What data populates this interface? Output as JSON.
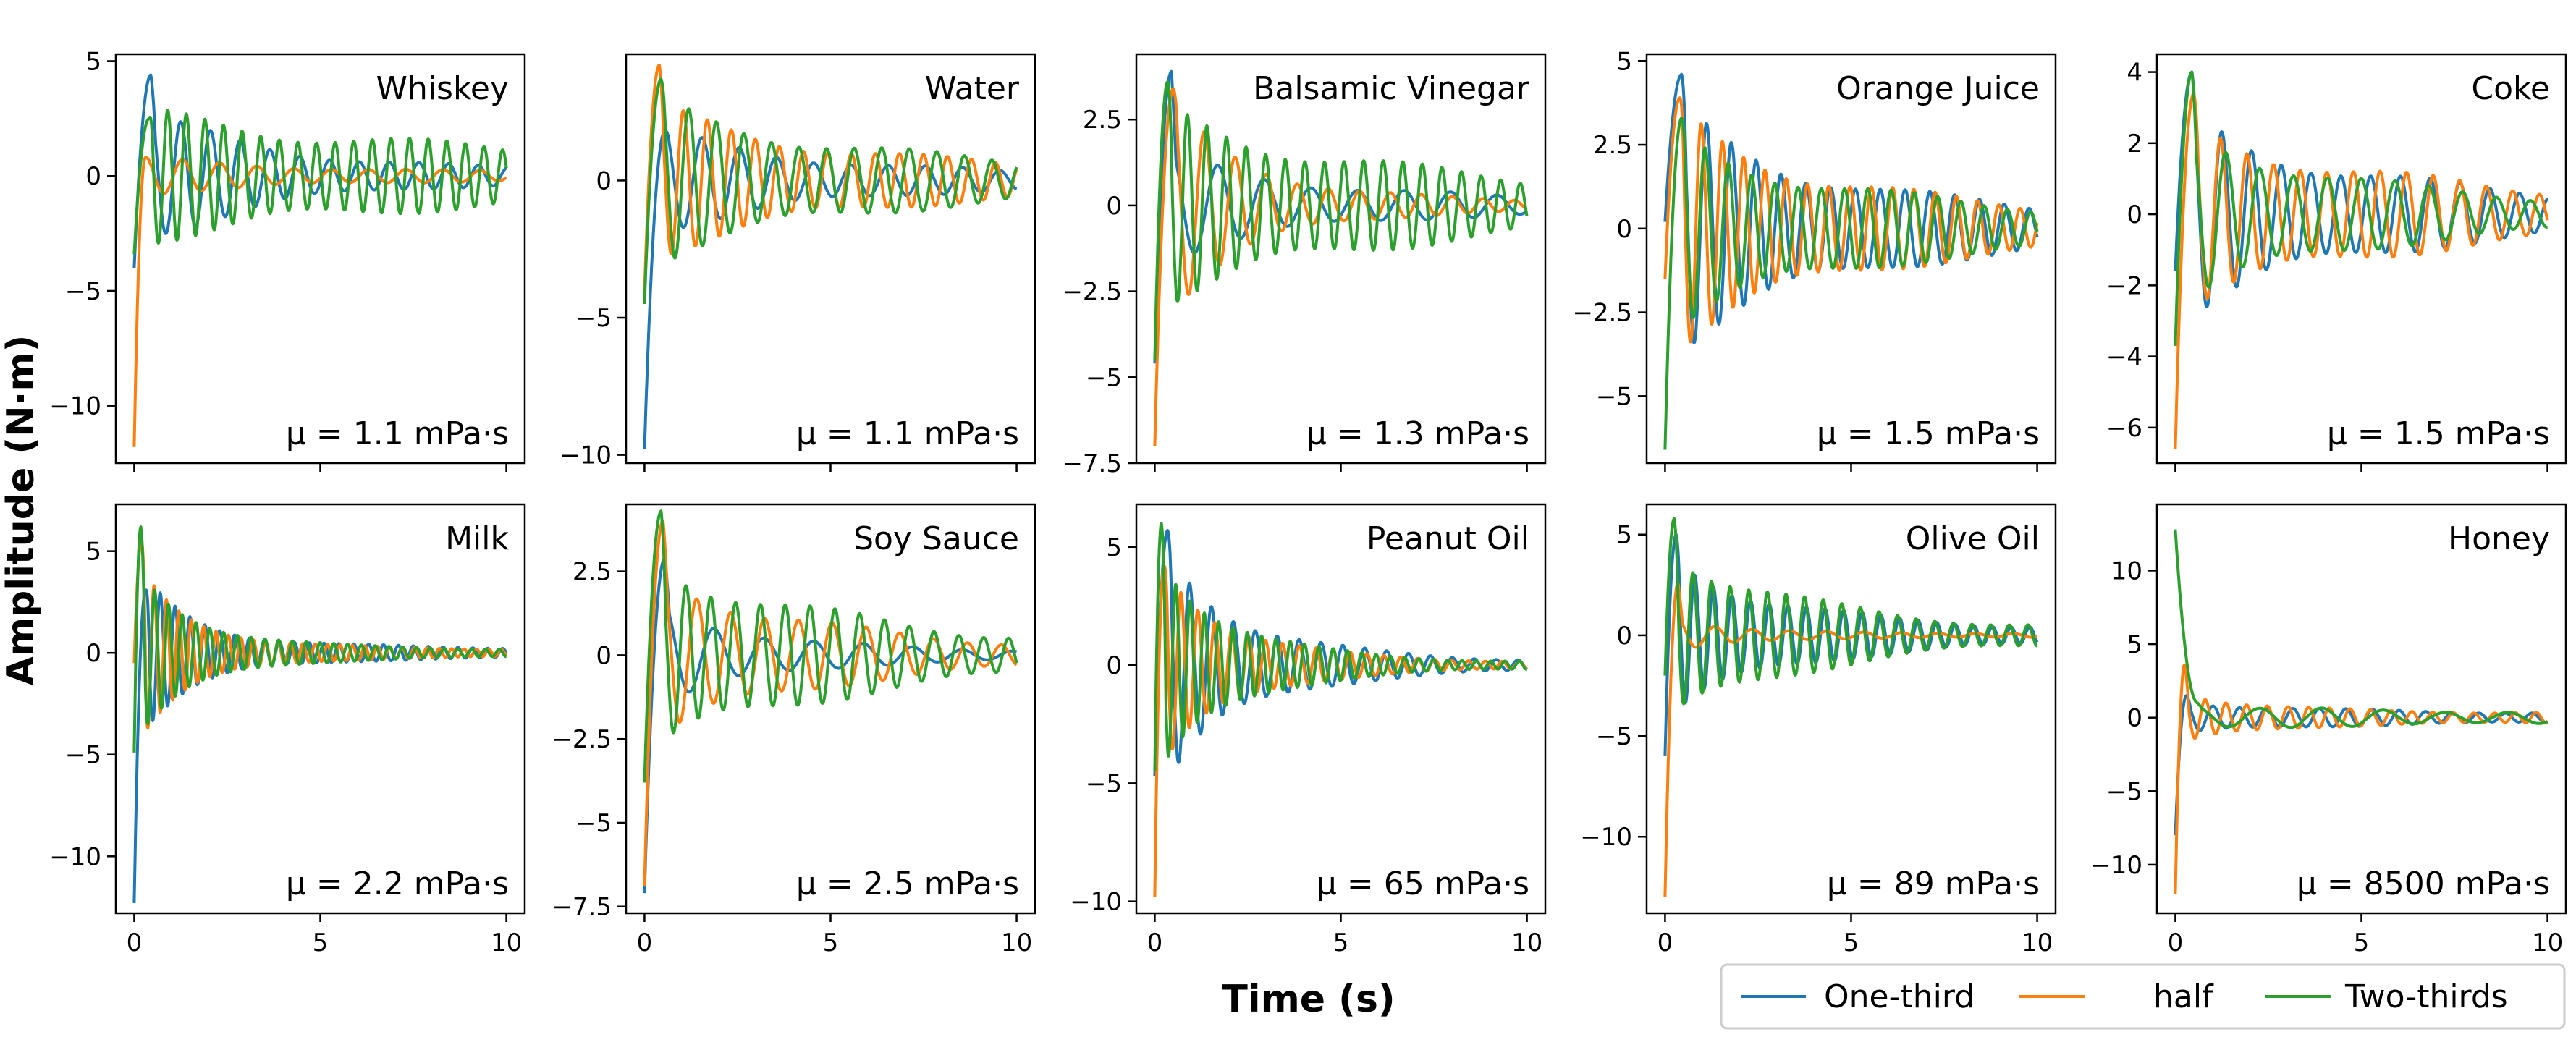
{
  "figure": {
    "ylabel": "Amplitude (N·m)",
    "xlabel": "Time (s)"
  },
  "legend": {
    "placement": "bottom-right",
    "entries": [
      {
        "label": "One-third",
        "color": "#1f77b4"
      },
      {
        "label": "half",
        "color": "#ff7f0e"
      },
      {
        "label": "Two-thirds",
        "color": "#2ca02c"
      }
    ]
  },
  "chart_data": [
    {
      "type": "line",
      "title": "Whiskey",
      "viscosity": "μ = 1.1 mPa·s",
      "xlim": [
        0,
        10
      ],
      "ylim": [
        -12.5,
        5.3
      ],
      "xticks": [
        0,
        5,
        10
      ],
      "yticks": [
        5,
        0,
        -5,
        -10
      ],
      "series": [
        {
          "name": "One-third",
          "start": -4,
          "peak": 4.4,
          "peak_t": 0.45,
          "amp": 2.3,
          "freq": 1.25,
          "decay": 0.25,
          "floor": 0.15
        },
        {
          "name": "half",
          "start": -11.8,
          "peak": 0.8,
          "peak_t": 0.3,
          "amp": 0.6,
          "freq": 1.0,
          "decay": 0.2,
          "floor": 0.12
        },
        {
          "name": "Two-thirds",
          "start": -3.4,
          "peak": 2.5,
          "peak_t": 0.4,
          "amp": 2.0,
          "freq": 2.0,
          "decay": 0.12,
          "floor": 0.55
        }
      ]
    },
    {
      "type": "line",
      "title": "Water",
      "viscosity": "μ = 1.1 mPa·s",
      "xlim": [
        0,
        10
      ],
      "ylim": [
        -10.3,
        4.6
      ],
      "xticks": [
        0,
        5,
        10
      ],
      "yticks": [
        0,
        -5,
        -10
      ],
      "series": [
        {
          "name": "One-third",
          "start": -9.8,
          "peak": 1.8,
          "peak_t": 0.55,
          "amp": 1.5,
          "freq": 1.0,
          "decay": 0.2,
          "floor": 0.1
        },
        {
          "name": "half",
          "start": -4.1,
          "peak": 4.2,
          "peak_t": 0.4,
          "amp": 2.2,
          "freq": 1.55,
          "decay": 0.18,
          "floor": 0.2
        },
        {
          "name": "Two-thirds",
          "start": -4.5,
          "peak": 3.7,
          "peak_t": 0.45,
          "amp": 2.3,
          "freq": 1.35,
          "decay": 0.17,
          "floor": 0.25
        }
      ]
    },
    {
      "type": "line",
      "title": "Balsamic Vinegar",
      "viscosity": "μ = 1.3 mPa·s",
      "xlim": [
        0,
        10
      ],
      "ylim": [
        -7.5,
        4.4
      ],
      "xticks": [
        0,
        5,
        10
      ],
      "yticks": [
        2.5,
        0.0,
        -2.5,
        -5.0,
        -7.5
      ],
      "series": [
        {
          "name": "One-third",
          "start": -4.6,
          "peak": 3.9,
          "peak_t": 0.45,
          "amp": 1.2,
          "freq": 0.8,
          "decay": 0.25,
          "floor": 0.15
        },
        {
          "name": "half",
          "start": -7.0,
          "peak": 3.4,
          "peak_t": 0.5,
          "amp": 2.5,
          "freq": 1.2,
          "decay": 0.4,
          "floor": 0.1
        },
        {
          "name": "Two-thirds",
          "start": -4.5,
          "peak": 3.6,
          "peak_t": 0.35,
          "amp": 2.3,
          "freq": 1.9,
          "decay": 0.15,
          "floor": 0.2
        }
      ]
    },
    {
      "type": "line",
      "title": "Orange Juice",
      "viscosity": "μ = 1.5 mPa·s",
      "xlim": [
        0,
        10
      ],
      "ylim": [
        -7.0,
        5.2
      ],
      "xticks": [
        0,
        5,
        10
      ],
      "yticks": [
        5.0,
        2.5,
        0.0,
        -2.5,
        -5.0
      ],
      "series": [
        {
          "name": "One-third",
          "start": 0.2,
          "peak": 4.6,
          "peak_t": 0.45,
          "amp": 2.8,
          "freq": 1.5,
          "decay": 0.22,
          "floor": 0.3
        },
        {
          "name": "half",
          "start": -1.5,
          "peak": 3.9,
          "peak_t": 0.4,
          "amp": 2.8,
          "freq": 1.75,
          "decay": 0.22,
          "floor": 0.3
        },
        {
          "name": "Two-thirds",
          "start": -6.6,
          "peak": 3.3,
          "peak_t": 0.45,
          "amp": 2.3,
          "freq": 1.6,
          "decay": 0.2,
          "floor": 0.25
        }
      ]
    },
    {
      "type": "line",
      "title": "Coke",
      "viscosity": "μ = 1.5 mPa·s",
      "xlim": [
        0,
        10
      ],
      "ylim": [
        -7.0,
        4.5
      ],
      "xticks": [
        0,
        5,
        10
      ],
      "yticks": [
        4,
        2,
        0,
        -2,
        -4,
        -6
      ],
      "series": [
        {
          "name": "One-third",
          "start": -1.6,
          "peak": 4.0,
          "peak_t": 0.45,
          "amp": 2.2,
          "freq": 1.25,
          "decay": 0.2,
          "floor": 0.25
        },
        {
          "name": "half",
          "start": -6.6,
          "peak": 3.4,
          "peak_t": 0.5,
          "amp": 2.0,
          "freq": 1.4,
          "decay": 0.18,
          "floor": 0.3
        },
        {
          "name": "Two-thirds",
          "start": -3.7,
          "peak": 4.0,
          "peak_t": 0.45,
          "amp": 2.0,
          "freq": 1.1,
          "decay": 0.22,
          "floor": 0.2
        }
      ]
    },
    {
      "type": "line",
      "title": "Milk",
      "viscosity": "μ = 2.2 mPa·s",
      "xlim": [
        0,
        10
      ],
      "ylim": [
        -12.8,
        7.3
      ],
      "xticks": [
        0,
        5,
        10
      ],
      "yticks": [
        5,
        0,
        -5,
        -10
      ],
      "series": [
        {
          "name": "One-third",
          "start": -12.3,
          "peak": 3.0,
          "peak_t": 0.3,
          "amp": 3.0,
          "freq": 2.5,
          "decay": 0.55,
          "floor": 0.25
        },
        {
          "name": "half",
          "start": -0.5,
          "peak": 5.5,
          "peak_t": 0.2,
          "amp": 3.5,
          "freq": 3.0,
          "decay": 0.6,
          "floor": 0.2
        },
        {
          "name": "Two-thirds",
          "start": -4.9,
          "peak": 6.2,
          "peak_t": 0.18,
          "amp": 3.5,
          "freq": 2.7,
          "decay": 0.55,
          "floor": 0.2
        }
      ]
    },
    {
      "type": "line",
      "title": "Soy Sauce",
      "viscosity": "μ = 2.5 mPa·s",
      "xlim": [
        0,
        10
      ],
      "ylim": [
        -7.7,
        4.5
      ],
      "xticks": [
        0,
        5,
        10
      ],
      "yticks": [
        2.5,
        0.0,
        -2.5,
        -5.0,
        -7.5
      ],
      "series": [
        {
          "name": "One-third",
          "start": -7.1,
          "peak": 2.9,
          "peak_t": 0.55,
          "amp": 1.3,
          "freq": 0.75,
          "decay": 0.35,
          "floor": 0.1
        },
        {
          "name": "half",
          "start": -6.9,
          "peak": 4.0,
          "peak_t": 0.5,
          "amp": 2.2,
          "freq": 1.1,
          "decay": 0.25,
          "floor": 0.15
        },
        {
          "name": "Two-thirds",
          "start": -3.8,
          "peak": 4.3,
          "peak_t": 0.45,
          "amp": 2.5,
          "freq": 1.5,
          "decay": 0.2,
          "floor": 0.2
        }
      ]
    },
    {
      "type": "line",
      "title": "Peanut Oil",
      "viscosity": "μ = 65 mPa·s",
      "xlim": [
        0,
        10
      ],
      "ylim": [
        -10.5,
        6.8
      ],
      "xticks": [
        0,
        5,
        10
      ],
      "yticks": [
        5,
        0,
        -5,
        -10
      ],
      "series": [
        {
          "name": "One-third",
          "start": -4.7,
          "peak": 5.7,
          "peak_t": 0.35,
          "amp": 4.5,
          "freq": 1.7,
          "decay": 0.45,
          "floor": 0.2
        },
        {
          "name": "half",
          "start": -9.8,
          "peak": 4.2,
          "peak_t": 0.25,
          "amp": 4.0,
          "freq": 2.2,
          "decay": 0.5,
          "floor": 0.15
        },
        {
          "name": "Two-thirds",
          "start": -4.5,
          "peak": 6.0,
          "peak_t": 0.18,
          "amp": 4.5,
          "freq": 2.6,
          "decay": 0.5,
          "floor": 0.15
        }
      ]
    },
    {
      "type": "line",
      "title": "Olive Oil",
      "viscosity": "μ = 89 mPa·s",
      "xlim": [
        0,
        10
      ],
      "ylim": [
        -13.8,
        6.5
      ],
      "xticks": [
        0,
        5,
        10
      ],
      "yticks": [
        5,
        0,
        -5,
        -10
      ],
      "series": [
        {
          "name": "One-third",
          "start": -6.0,
          "peak": 5.0,
          "peak_t": 0.3,
          "amp": 3.5,
          "freq": 2.0,
          "decay": 0.35,
          "floor": 0.35
        },
        {
          "name": "half",
          "start": -13.0,
          "peak": 2.6,
          "peak_t": 0.35,
          "amp": 0.8,
          "freq": 1.0,
          "decay": 0.6,
          "floor": 0.1
        },
        {
          "name": "Two-thirds",
          "start": -2.0,
          "peak": 5.8,
          "peak_t": 0.25,
          "amp": 4.0,
          "freq": 2.0,
          "decay": 0.3,
          "floor": 0.3
        }
      ]
    },
    {
      "type": "line",
      "title": "Honey",
      "viscosity": "μ = 8500 mPa·s",
      "xlim": [
        0,
        10
      ],
      "ylim": [
        -13.3,
        14.5
      ],
      "xticks": [
        0,
        5,
        10
      ],
      "yticks": [
        10,
        5,
        0,
        -5,
        -10
      ],
      "series": [
        {
          "name": "One-third",
          "start": -8.0,
          "peak": 1.5,
          "peak_t": 0.3,
          "amp": 0.8,
          "freq": 1.4,
          "decay": 0.3,
          "floor": 0.3
        },
        {
          "name": "half",
          "start": -12.0,
          "peak": 3.6,
          "peak_t": 0.25,
          "amp": 1.5,
          "freq": 1.8,
          "decay": 0.5,
          "floor": 0.35
        },
        {
          "name": "Two-thirds",
          "start": 12.8,
          "peak": 1.0,
          "peak_t": 0.6,
          "amp": 0.5,
          "freq": 0.6,
          "decay": 0.2,
          "floor": 0.3
        }
      ]
    }
  ]
}
